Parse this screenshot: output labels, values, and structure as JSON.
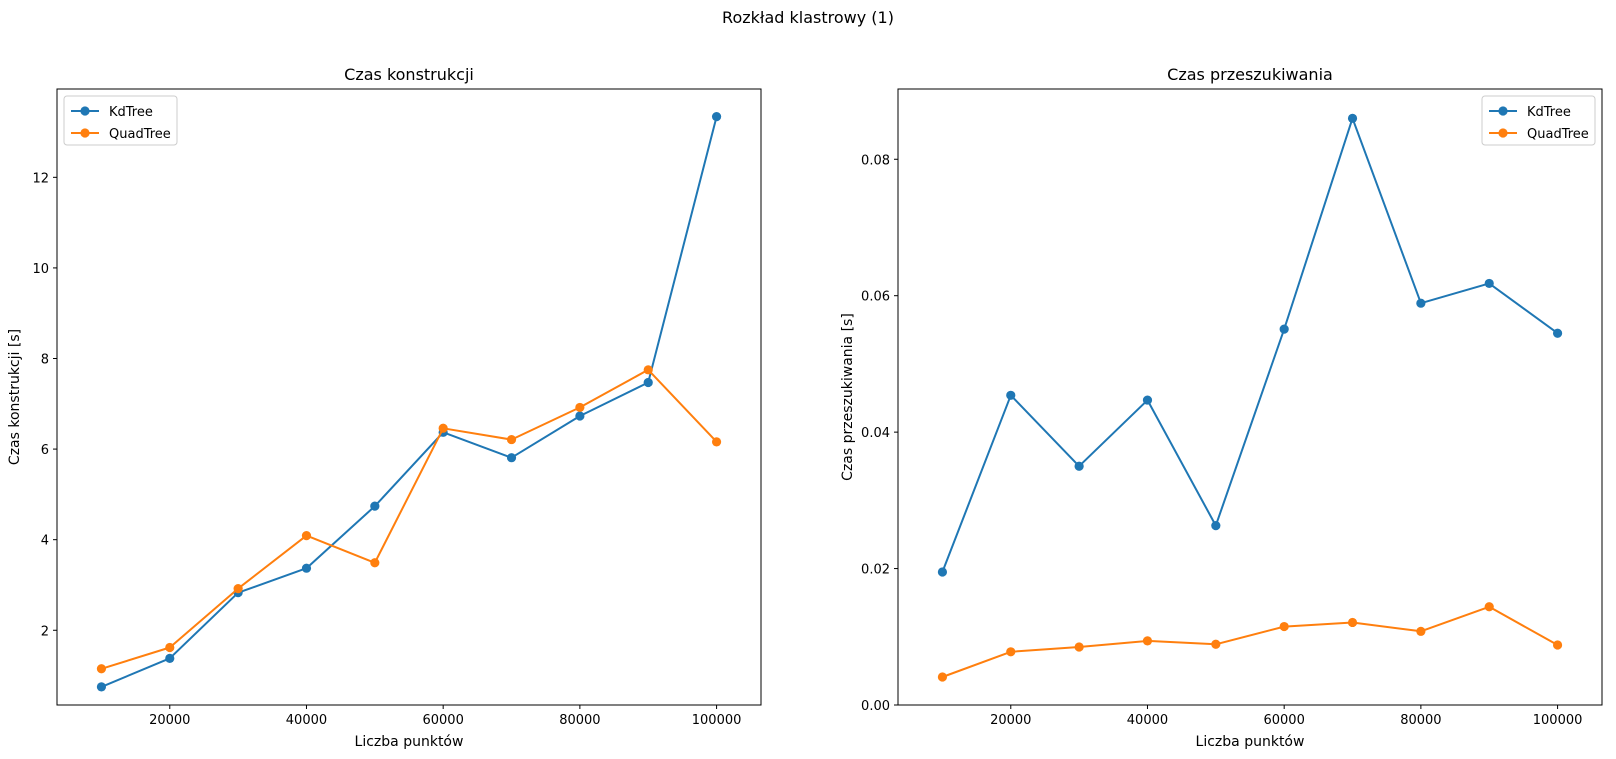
{
  "suptitle": "Rozkład klastrowy (1)",
  "colors": {
    "kdtree": "#1f77b4",
    "quadtree": "#ff7f0e"
  },
  "chart_data": [
    {
      "type": "line",
      "title": "Czas konstrukcji",
      "xlabel": "Liczba punktów",
      "ylabel": "Czas konstrukcji [s]",
      "x": [
        10000,
        20000,
        30000,
        40000,
        50000,
        60000,
        70000,
        80000,
        90000,
        100000
      ],
      "xlim": [
        3500,
        106500
      ],
      "ylim": [
        0.35,
        13.95
      ],
      "xticks": [
        20000,
        40000,
        60000,
        80000,
        100000
      ],
      "xtick_labels": [
        "20000",
        "40000",
        "60000",
        "80000",
        "100000"
      ],
      "yticks": [
        2,
        4,
        6,
        8,
        10,
        12
      ],
      "ytick_labels": [
        "2",
        "4",
        "6",
        "8",
        "10",
        "12"
      ],
      "legend": "top-left",
      "grid": false,
      "series": [
        {
          "name": "KdTree",
          "color": "#1f77b4",
          "values": [
            0.75,
            1.38,
            2.83,
            3.37,
            4.74,
            6.37,
            5.81,
            6.73,
            7.47,
            13.34
          ]
        },
        {
          "name": "QuadTree",
          "color": "#ff7f0e",
          "values": [
            1.15,
            1.62,
            2.92,
            4.09,
            3.49,
            6.46,
            6.21,
            6.92,
            7.75,
            6.16
          ]
        }
      ]
    },
    {
      "type": "line",
      "title": "Czas przeszukiwania",
      "xlabel": "Liczba punktów",
      "ylabel": "Czas przeszukiwania [s]",
      "x": [
        10000,
        20000,
        30000,
        40000,
        50000,
        60000,
        70000,
        80000,
        90000,
        100000
      ],
      "xlim": [
        3500,
        106500
      ],
      "ylim": [
        0,
        0.0903
      ],
      "xticks": [
        20000,
        40000,
        60000,
        80000,
        100000
      ],
      "xtick_labels": [
        "20000",
        "40000",
        "60000",
        "80000",
        "100000"
      ],
      "yticks": [
        0,
        0.02,
        0.04,
        0.06,
        0.08
      ],
      "ytick_labels": [
        "0.00",
        "0.02",
        "0.04",
        "0.06",
        "0.08"
      ],
      "legend": "top-right",
      "grid": false,
      "series": [
        {
          "name": "KdTree",
          "color": "#1f77b4",
          "values": [
            0.0195,
            0.0454,
            0.035,
            0.0447,
            0.0263,
            0.0551,
            0.086,
            0.0589,
            0.0618,
            0.0545
          ]
        },
        {
          "name": "QuadTree",
          "color": "#ff7f0e",
          "values": [
            0.0041,
            0.0078,
            0.0085,
            0.0094,
            0.0089,
            0.0115,
            0.0121,
            0.0108,
            0.0144,
            0.0088
          ]
        }
      ]
    }
  ]
}
